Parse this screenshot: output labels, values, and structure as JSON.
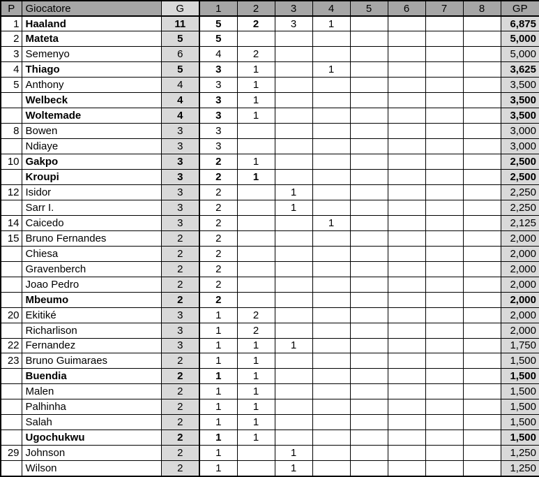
{
  "colors": {
    "header_bg": "#a6a6a6",
    "shaded_col_bg": "#d9d9d9",
    "grid_line": "#000000",
    "text": "#000000"
  },
  "table": {
    "columns": [
      {
        "key": "pos",
        "label": "P"
      },
      {
        "key": "name",
        "label": "Giocatore"
      },
      {
        "key": "g",
        "label": "G"
      },
      {
        "key": "c1",
        "label": "1"
      },
      {
        "key": "c2",
        "label": "2"
      },
      {
        "key": "c3",
        "label": "3"
      },
      {
        "key": "c4",
        "label": "4"
      },
      {
        "key": "c5",
        "label": "5"
      },
      {
        "key": "c6",
        "label": "6"
      },
      {
        "key": "c7",
        "label": "7"
      },
      {
        "key": "c8",
        "label": "8"
      },
      {
        "key": "gp",
        "label": "GP"
      }
    ],
    "rows": [
      {
        "pos": "1",
        "name": "Haaland",
        "g": "11",
        "c1": "5",
        "c2": "2",
        "c3": "3",
        "c4": "1",
        "gp": "6,875",
        "bold": [
          "name",
          "g",
          "c1",
          "c2",
          "gp"
        ]
      },
      {
        "pos": "2",
        "name": "Mateta",
        "g": "5",
        "c1": "5",
        "gp": "5,000",
        "bold": [
          "name",
          "g",
          "c1",
          "gp"
        ]
      },
      {
        "pos": "3",
        "name": "Semenyo",
        "g": "6",
        "c1": "4",
        "c2": "2",
        "gp": "5,000",
        "bold": []
      },
      {
        "pos": "4",
        "name": "Thiago",
        "g": "5",
        "c1": "3",
        "c2": "1",
        "c4": "1",
        "gp": "3,625",
        "bold": [
          "name",
          "g",
          "c1",
          "gp"
        ]
      },
      {
        "pos": "5",
        "name": "Anthony",
        "g": "4",
        "c1": "3",
        "c2": "1",
        "gp": "3,500",
        "bold": []
      },
      {
        "pos": "",
        "name": "Welbeck",
        "g": "4",
        "c1": "3",
        "c2": "1",
        "gp": "3,500",
        "bold": [
          "name",
          "g",
          "c1",
          "gp"
        ]
      },
      {
        "pos": "",
        "name": "Woltemade",
        "g": "4",
        "c1": "3",
        "c2": "1",
        "gp": "3,500",
        "bold": [
          "name",
          "g",
          "c1",
          "gp"
        ]
      },
      {
        "pos": "8",
        "name": "Bowen",
        "g": "3",
        "c1": "3",
        "gp": "3,000",
        "bold": []
      },
      {
        "pos": "",
        "name": "Ndiaye",
        "g": "3",
        "c1": "3",
        "gp": "3,000",
        "bold": []
      },
      {
        "pos": "10",
        "name": "Gakpo",
        "g": "3",
        "c1": "2",
        "c2": "1",
        "gp": "2,500",
        "bold": [
          "name",
          "g",
          "c1",
          "gp"
        ]
      },
      {
        "pos": "",
        "name": "Kroupi",
        "g": "3",
        "c1": "2",
        "c2": "1",
        "gp": "2,500",
        "bold": [
          "name",
          "g",
          "c1",
          "c2",
          "gp"
        ]
      },
      {
        "pos": "12",
        "name": "Isidor",
        "g": "3",
        "c1": "2",
        "c3": "1",
        "gp": "2,250",
        "bold": []
      },
      {
        "pos": "",
        "name": "Sarr I.",
        "g": "3",
        "c1": "2",
        "c3": "1",
        "gp": "2,250",
        "bold": []
      },
      {
        "pos": "14",
        "name": "Caicedo",
        "g": "3",
        "c1": "2",
        "c4": "1",
        "gp": "2,125",
        "bold": []
      },
      {
        "pos": "15",
        "name": "Bruno Fernandes",
        "g": "2",
        "c1": "2",
        "gp": "2,000",
        "bold": []
      },
      {
        "pos": "",
        "name": "Chiesa",
        "g": "2",
        "c1": "2",
        "gp": "2,000",
        "bold": []
      },
      {
        "pos": "",
        "name": "Gravenberch",
        "g": "2",
        "c1": "2",
        "gp": "2,000",
        "bold": []
      },
      {
        "pos": "",
        "name": "Joao Pedro",
        "g": "2",
        "c1": "2",
        "gp": "2,000",
        "bold": []
      },
      {
        "pos": "",
        "name": "Mbeumo",
        "g": "2",
        "c1": "2",
        "gp": "2,000",
        "bold": [
          "name",
          "g",
          "c1",
          "gp"
        ]
      },
      {
        "pos": "20",
        "name": "Ekitiké",
        "g": "3",
        "c1": "1",
        "c2": "2",
        "gp": "2,000",
        "bold": []
      },
      {
        "pos": "",
        "name": "Richarlison",
        "g": "3",
        "c1": "1",
        "c2": "2",
        "gp": "2,000",
        "bold": []
      },
      {
        "pos": "22",
        "name": "Fernandez",
        "g": "3",
        "c1": "1",
        "c2": "1",
        "c3": "1",
        "gp": "1,750",
        "bold": []
      },
      {
        "pos": "23",
        "name": "Bruno Guimaraes",
        "g": "2",
        "c1": "1",
        "c2": "1",
        "gp": "1,500",
        "bold": []
      },
      {
        "pos": "",
        "name": "Buendia",
        "g": "2",
        "c1": "1",
        "c2": "1",
        "gp": "1,500",
        "bold": [
          "name",
          "g",
          "c1",
          "gp"
        ]
      },
      {
        "pos": "",
        "name": "Malen",
        "g": "2",
        "c1": "1",
        "c2": "1",
        "gp": "1,500",
        "bold": []
      },
      {
        "pos": "",
        "name": "Palhinha",
        "g": "2",
        "c1": "1",
        "c2": "1",
        "gp": "1,500",
        "bold": []
      },
      {
        "pos": "",
        "name": "Salah",
        "g": "2",
        "c1": "1",
        "c2": "1",
        "gp": "1,500",
        "bold": []
      },
      {
        "pos": "",
        "name": "Ugochukwu",
        "g": "2",
        "c1": "1",
        "c2": "1",
        "gp": "1,500",
        "bold": [
          "name",
          "g",
          "c1",
          "gp"
        ]
      },
      {
        "pos": "29",
        "name": "Johnson",
        "g": "2",
        "c1": "1",
        "c3": "1",
        "gp": "1,250",
        "bold": []
      },
      {
        "pos": "",
        "name": "Wilson",
        "g": "2",
        "c1": "1",
        "c3": "1",
        "gp": "1,250",
        "bold": []
      }
    ]
  }
}
